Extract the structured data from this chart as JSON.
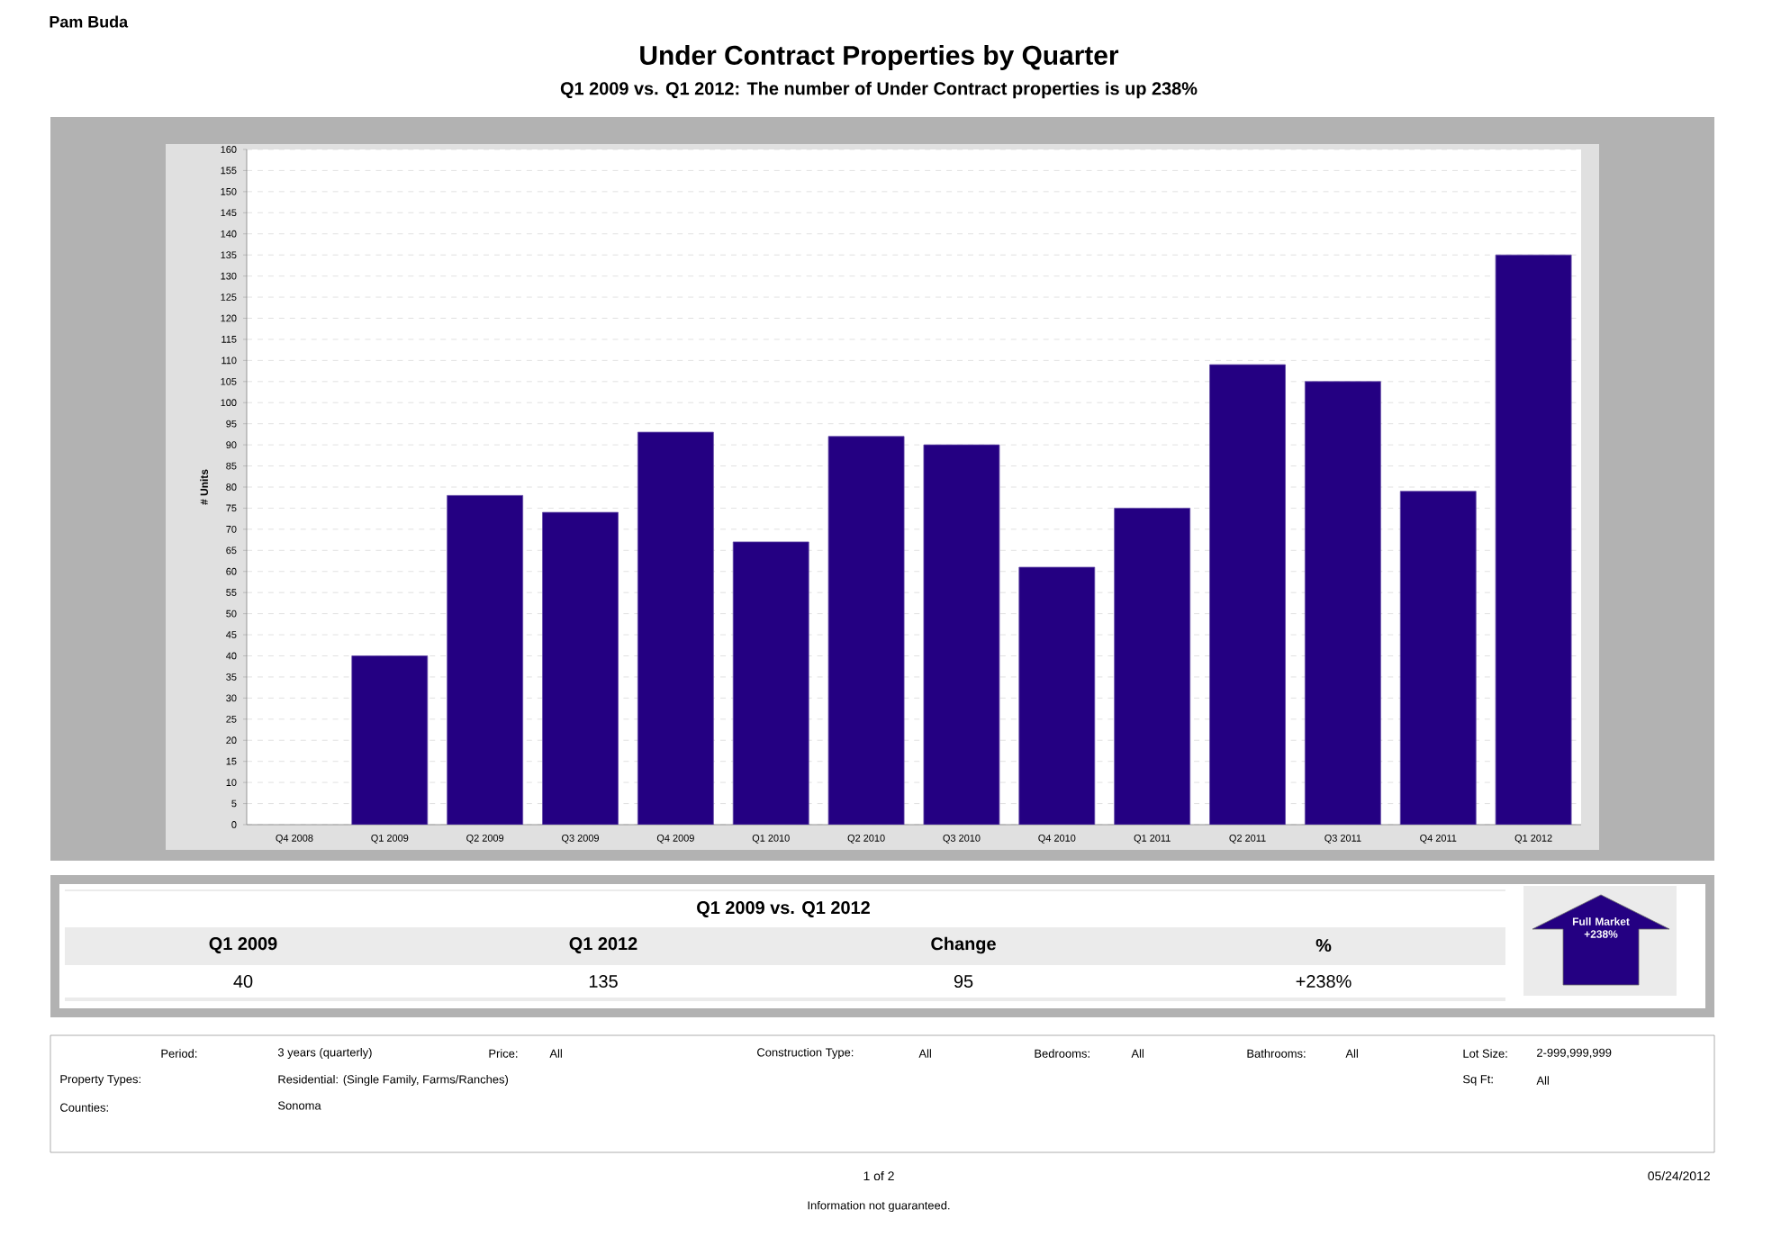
{
  "chart_data": {
    "type": "bar",
    "title": "Under Contract Properties by Quarter",
    "subtitle": "Q1 2009 vs. Q1 2012: The number of Under Contract properties is up 238%",
    "ylabel": "# Units",
    "categories": [
      "Q4 2008",
      "Q1 2009",
      "Q2 2009",
      "Q3 2009",
      "Q4 2009",
      "Q1 2010",
      "Q2 2010",
      "Q3 2010",
      "Q4 2010",
      "Q1 2011",
      "Q2 2011",
      "Q3 2011",
      "Q4 2011",
      "Q1 2012"
    ],
    "values": [
      null,
      40,
      78,
      74,
      93,
      67,
      92,
      90,
      61,
      75,
      109,
      105,
      79,
      135
    ],
    "color": "#240082",
    "ylim": [
      0,
      160
    ],
    "yticks": [
      0,
      5,
      10,
      15,
      20,
      25,
      30,
      35,
      40,
      45,
      50,
      55,
      60,
      65,
      70,
      75,
      80,
      85,
      90,
      95,
      100,
      105,
      110,
      115,
      120,
      125,
      130,
      135,
      140,
      145,
      150,
      155,
      160
    ],
    "grid": "y",
    "annotations": [
      "Pam Buda",
      "Q1 2009 vs. Q1 2012",
      "Q1 2009",
      "Q1 2012",
      "Change",
      "%",
      "40",
      "135",
      "95",
      "+238%",
      "Full Market +238%",
      "Period:",
      "3 years (quarterly)",
      "Price:",
      "All",
      "Construction Type:",
      "All",
      "Bedrooms:",
      "All",
      "Bathrooms:",
      "All",
      "Lot Size:",
      "2-999,999,999",
      "Property Types:",
      "Residential: (Single Family, Farms/Ranches)",
      "Sq Ft:",
      "All",
      "Counties:",
      "Sonoma",
      "1 of 2",
      "05/24/2012",
      "Information not guaranteed."
    ]
  }
}
